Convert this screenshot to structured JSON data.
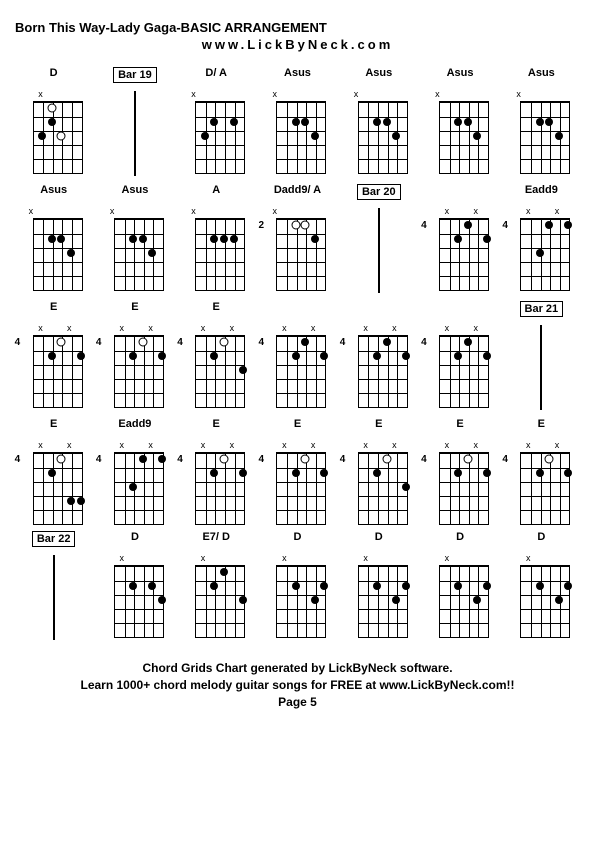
{
  "title": "Born This Way-Lady Gaga-BASIC ARRANGEMENT",
  "website": "www.LickByNeck.com",
  "footer1": "Chord Grids Chart generated by LickByNeck software.",
  "footer2": "Learn 1000+ chord melody guitar songs for FREE at www.LickByNeck.com!!",
  "pageLabel": "Page 5",
  "cells": [
    {
      "type": "chord",
      "label": "D",
      "fret": "",
      "markers": [
        "",
        "x",
        "",
        "",
        "",
        ""
      ],
      "dots": [
        [
          1,
          3,
          "open"
        ],
        [
          2,
          3
        ],
        [
          3,
          2
        ],
        [
          3,
          4,
          "open"
        ]
      ]
    },
    {
      "type": "bar",
      "label": "Bar 19"
    },
    {
      "type": "chord",
      "label": "D/ A",
      "fret": "",
      "markers": [
        "x",
        "",
        "",
        "",
        "",
        ""
      ],
      "dots": [
        [
          2,
          3
        ],
        [
          3,
          2
        ],
        [
          2,
          5
        ]
      ]
    },
    {
      "type": "chord",
      "label": "Asus",
      "fret": "",
      "markers": [
        "x",
        "",
        "",
        "",
        "",
        ""
      ],
      "dots": [
        [
          2,
          3
        ],
        [
          2,
          4
        ],
        [
          3,
          5
        ]
      ]
    },
    {
      "type": "chord",
      "label": "Asus",
      "fret": "",
      "markers": [
        "x",
        "",
        "",
        "",
        "",
        ""
      ],
      "dots": [
        [
          2,
          3
        ],
        [
          2,
          4
        ],
        [
          3,
          5
        ]
      ]
    },
    {
      "type": "chord",
      "label": "Asus",
      "fret": "",
      "markers": [
        "x",
        "",
        "",
        "",
        "",
        ""
      ],
      "dots": [
        [
          2,
          3
        ],
        [
          2,
          4
        ],
        [
          3,
          5
        ]
      ]
    },
    {
      "type": "chord",
      "label": "Asus",
      "fret": "",
      "markers": [
        "x",
        "",
        "",
        "",
        "",
        ""
      ],
      "dots": [
        [
          2,
          3
        ],
        [
          2,
          4
        ],
        [
          3,
          5
        ]
      ]
    },
    {
      "type": "chord",
      "label": "Asus",
      "fret": "",
      "markers": [
        "x",
        "",
        "",
        "",
        "",
        ""
      ],
      "dots": [
        [
          2,
          3
        ],
        [
          2,
          4
        ],
        [
          3,
          5
        ]
      ]
    },
    {
      "type": "chord",
      "label": "Asus",
      "fret": "",
      "markers": [
        "x",
        "",
        "",
        "",
        "",
        ""
      ],
      "dots": [
        [
          2,
          3
        ],
        [
          2,
          4
        ],
        [
          3,
          5
        ]
      ]
    },
    {
      "type": "chord",
      "label": "A",
      "fret": "",
      "markers": [
        "x",
        "",
        "",
        "",
        "",
        ""
      ],
      "dots": [
        [
          2,
          3
        ],
        [
          2,
          4
        ],
        [
          2,
          5
        ]
      ]
    },
    {
      "type": "chord",
      "label": "Dadd9/ A",
      "fret": "2",
      "markers": [
        "x",
        "",
        "",
        "",
        "",
        ""
      ],
      "dots": [
        [
          1,
          3,
          "open"
        ],
        [
          1,
          4,
          "open"
        ],
        [
          2,
          5
        ]
      ]
    },
    {
      "type": "bar",
      "label": "Bar 20"
    },
    {
      "type": "chord",
      "label": "",
      "fret": "4",
      "markers": [
        "",
        "x",
        "",
        "",
        "x",
        ""
      ],
      "dots": [
        [
          1,
          4
        ],
        [
          2,
          3
        ],
        [
          2,
          6
        ]
      ]
    },
    {
      "type": "chord",
      "label": "Eadd9",
      "fret": "4",
      "markers": [
        "",
        "x",
        "",
        "",
        "x",
        ""
      ],
      "dots": [
        [
          1,
          4
        ],
        [
          1,
          6
        ],
        [
          3,
          3
        ]
      ]
    },
    {
      "type": "chord",
      "label": "E",
      "fret": "4",
      "markers": [
        "",
        "x",
        "",
        "",
        "x",
        ""
      ],
      "dots": [
        [
          1,
          4,
          "open"
        ],
        [
          2,
          3
        ],
        [
          2,
          6
        ]
      ]
    },
    {
      "type": "chord",
      "label": "E",
      "fret": "4",
      "markers": [
        "",
        "x",
        "",
        "",
        "x",
        ""
      ],
      "dots": [
        [
          1,
          4,
          "open"
        ],
        [
          2,
          3
        ],
        [
          2,
          6
        ]
      ]
    },
    {
      "type": "chord",
      "label": "E",
      "fret": "4",
      "markers": [
        "",
        "x",
        "",
        "",
        "x",
        ""
      ],
      "dots": [
        [
          1,
          4,
          "open"
        ],
        [
          2,
          3
        ],
        [
          3,
          6
        ]
      ]
    },
    {
      "type": "chord",
      "label": "",
      "fret": "4",
      "markers": [
        "",
        "x",
        "",
        "",
        "x",
        ""
      ],
      "dots": [
        [
          1,
          4
        ],
        [
          2,
          3
        ],
        [
          2,
          6
        ]
      ]
    },
    {
      "type": "chord",
      "label": "",
      "fret": "4",
      "markers": [
        "",
        "x",
        "",
        "",
        "x",
        ""
      ],
      "dots": [
        [
          1,
          4
        ],
        [
          2,
          3
        ],
        [
          2,
          6
        ]
      ]
    },
    {
      "type": "chord",
      "label": "",
      "fret": "4",
      "markers": [
        "",
        "x",
        "",
        "",
        "x",
        ""
      ],
      "dots": [
        [
          1,
          4
        ],
        [
          2,
          3
        ],
        [
          2,
          6
        ]
      ]
    },
    {
      "type": "bar",
      "label": "Bar 21"
    },
    {
      "type": "chord",
      "label": "E",
      "fret": "4",
      "markers": [
        "",
        "x",
        "",
        "",
        "x",
        ""
      ],
      "dots": [
        [
          1,
          4,
          "open"
        ],
        [
          2,
          3
        ],
        [
          4,
          5
        ],
        [
          4,
          6
        ]
      ]
    },
    {
      "type": "chord",
      "label": "Eadd9",
      "fret": "4",
      "markers": [
        "",
        "x",
        "",
        "",
        "x",
        ""
      ],
      "dots": [
        [
          1,
          6
        ],
        [
          3,
          3
        ],
        [
          1,
          4
        ]
      ]
    },
    {
      "type": "chord",
      "label": "E",
      "fret": "4",
      "markers": [
        "",
        "x",
        "",
        "",
        "x",
        ""
      ],
      "dots": [
        [
          1,
          4,
          "open"
        ],
        [
          2,
          3
        ],
        [
          2,
          6
        ]
      ]
    },
    {
      "type": "chord",
      "label": "E",
      "fret": "4",
      "markers": [
        "",
        "x",
        "",
        "",
        "x",
        ""
      ],
      "dots": [
        [
          1,
          4,
          "open"
        ],
        [
          2,
          3
        ],
        [
          2,
          6
        ]
      ]
    },
    {
      "type": "chord",
      "label": "E",
      "fret": "4",
      "markers": [
        "",
        "x",
        "",
        "",
        "x",
        ""
      ],
      "dots": [
        [
          1,
          4,
          "open"
        ],
        [
          2,
          3
        ],
        [
          3,
          6
        ]
      ]
    },
    {
      "type": "chord",
      "label": "E",
      "fret": "4",
      "markers": [
        "",
        "x",
        "",
        "",
        "x",
        ""
      ],
      "dots": [
        [
          1,
          4,
          "open"
        ],
        [
          2,
          3
        ],
        [
          2,
          6
        ]
      ]
    },
    {
      "type": "chord",
      "label": "E",
      "fret": "4",
      "markers": [
        "",
        "x",
        "",
        "",
        "x",
        ""
      ],
      "dots": [
        [
          1,
          4,
          "open"
        ],
        [
          2,
          3
        ],
        [
          2,
          6
        ]
      ]
    },
    {
      "type": "bar",
      "label": "Bar 22"
    },
    {
      "type": "chord",
      "label": "D",
      "fret": "",
      "markers": [
        "",
        "x",
        "",
        "",
        "",
        ""
      ],
      "dots": [
        [
          2,
          3
        ],
        [
          2,
          5
        ],
        [
          3,
          6
        ]
      ]
    },
    {
      "type": "chord",
      "label": "E7/ D",
      "fret": "",
      "markers": [
        "",
        "x",
        "",
        "",
        "",
        ""
      ],
      "dots": [
        [
          2,
          3
        ],
        [
          1,
          4
        ],
        [
          3,
          6
        ]
      ]
    },
    {
      "type": "chord",
      "label": "D",
      "fret": "",
      "markers": [
        "",
        "x",
        "",
        "",
        "",
        ""
      ],
      "dots": [
        [
          2,
          3
        ],
        [
          3,
          5
        ],
        [
          2,
          6
        ]
      ]
    },
    {
      "type": "chord",
      "label": "D",
      "fret": "",
      "markers": [
        "",
        "x",
        "",
        "",
        "",
        ""
      ],
      "dots": [
        [
          2,
          3
        ],
        [
          3,
          5
        ],
        [
          2,
          6
        ]
      ]
    },
    {
      "type": "chord",
      "label": "D",
      "fret": "",
      "markers": [
        "",
        "x",
        "",
        "",
        "",
        ""
      ],
      "dots": [
        [
          2,
          3
        ],
        [
          3,
          5
        ],
        [
          2,
          6
        ]
      ]
    },
    {
      "type": "chord",
      "label": "D",
      "fret": "",
      "markers": [
        "",
        "x",
        "",
        "",
        "",
        ""
      ],
      "dots": [
        [
          2,
          3
        ],
        [
          3,
          5
        ],
        [
          2,
          6
        ]
      ]
    }
  ]
}
